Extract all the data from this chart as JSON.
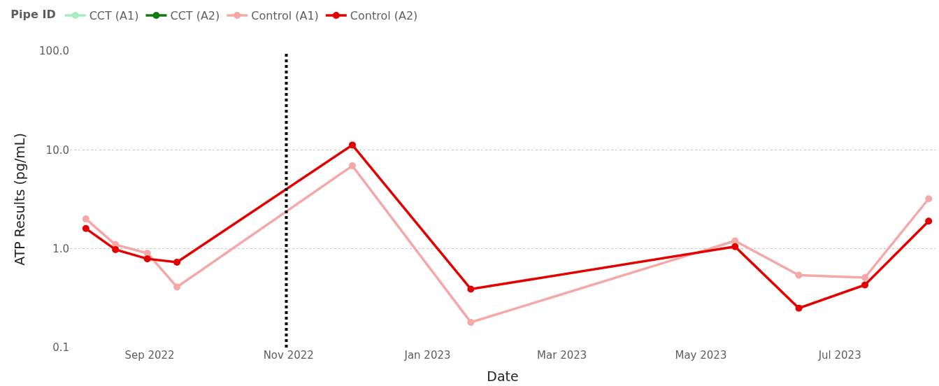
{
  "chart_data": {
    "type": "line",
    "xlabel": "Date",
    "ylabel": "ATP Results (pg/mL)",
    "legend_title": "Pipe ID",
    "legend": "top left",
    "log": "y",
    "grid": "y",
    "marker": "circle",
    "line_style": "solid",
    "x": [
      "2022-08-04",
      "2022-08-17",
      "2022-08-31",
      "2022-09-13",
      "2022-11-29",
      "2023-01-20",
      "2023-05-16",
      "2023-06-13",
      "2023-07-12",
      "2023-08-09"
    ],
    "series": [
      {
        "name": "CCT (A1)",
        "color": "#a8ecc0",
        "values": [
          null,
          null,
          null,
          null,
          null,
          null,
          null,
          null,
          null,
          null
        ]
      },
      {
        "name": "CCT (A2)",
        "color": "#107c10",
        "values": [
          null,
          null,
          null,
          null,
          null,
          null,
          null,
          null,
          null,
          null
        ]
      },
      {
        "name": "Control (A1)",
        "color": "#f4a9a8",
        "values": [
          2.0,
          1.1,
          0.9,
          0.41,
          6.9,
          0.18,
          1.2,
          0.54,
          0.51,
          3.2
        ]
      },
      {
        "name": "Control (A2)",
        "color": "#e30000",
        "values": [
          1.6,
          0.98,
          0.79,
          0.73,
          11.2,
          0.39,
          1.05,
          0.25,
          0.43,
          1.9
        ]
      }
    ],
    "xlim": [
      "2022-07-28",
      "2023-08-12"
    ],
    "xticks": [
      {
        "value": "2022-09-01",
        "label": "Sep 2022"
      },
      {
        "value": "2022-11-01",
        "label": "Nov 2022"
      },
      {
        "value": "2023-01-01",
        "label": "Jan 2023"
      },
      {
        "value": "2023-03-01",
        "label": "Mar 2023"
      },
      {
        "value": "2023-05-01",
        "label": "May 2023"
      },
      {
        "value": "2023-07-01",
        "label": "Jul 2023"
      }
    ],
    "ylim": [
      0.1,
      100
    ],
    "yticks": [
      {
        "value": 0.1,
        "label": "0.1"
      },
      {
        "value": 1,
        "label": "1.0"
      },
      {
        "value": 10,
        "label": "10.0"
      },
      {
        "value": 100,
        "label": "100.0"
      }
    ],
    "ref_lines": [
      {
        "axis": "x",
        "value": "2022-10-31",
        "color": "#000000",
        "line_style": "dotted"
      }
    ]
  }
}
